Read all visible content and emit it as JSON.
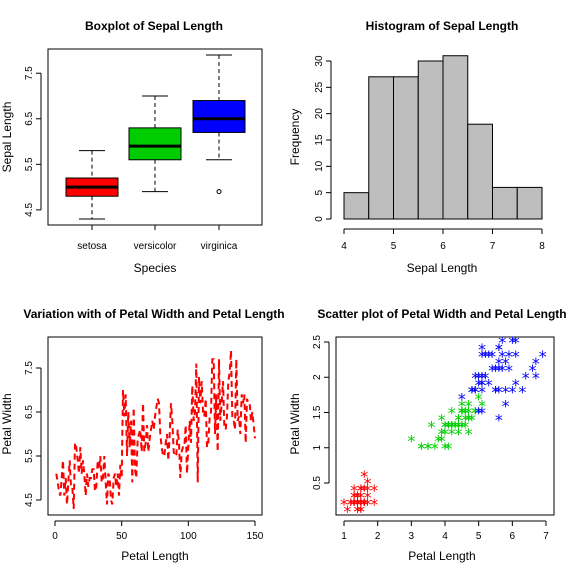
{
  "chart_data": [
    {
      "type": "boxplot",
      "title": "Boxplot of Sepal Length",
      "xlabel": "Species",
      "ylabel": "Sepal Length",
      "categories": [
        "setosa",
        "versicolor",
        "virginica"
      ],
      "yticks": [
        4.5,
        5.5,
        6.5,
        7.5
      ],
      "ylim": [
        4.3,
        7.9
      ],
      "colors": [
        "#ff0000",
        "#00cd00",
        "#0000ff"
      ],
      "boxes": [
        {
          "name": "setosa",
          "min": 4.3,
          "q1": 4.8,
          "median": 5.0,
          "q3": 5.2,
          "max": 5.8,
          "outliers": []
        },
        {
          "name": "versicolor",
          "min": 4.9,
          "q1": 5.6,
          "median": 5.9,
          "q3": 6.3,
          "max": 7.0,
          "outliers": []
        },
        {
          "name": "virginica",
          "min": 5.6,
          "q1": 6.2,
          "median": 6.5,
          "q3": 6.9,
          "max": 7.9,
          "outliers": [
            4.9
          ]
        }
      ]
    },
    {
      "type": "histogram",
      "title": "Histogram of Sepal Length",
      "xlabel": "Sepal Length",
      "ylabel": "Frequency",
      "xticks": [
        4,
        5,
        6,
        7,
        8
      ],
      "yticks": [
        0,
        5,
        10,
        15,
        20,
        25,
        30
      ],
      "fill": "#bebebe",
      "bins": [
        {
          "from": 4.0,
          "to": 4.5,
          "count": 5
        },
        {
          "from": 4.5,
          "to": 5.0,
          "count": 27
        },
        {
          "from": 5.0,
          "to": 5.5,
          "count": 27
        },
        {
          "from": 5.5,
          "to": 6.0,
          "count": 30
        },
        {
          "from": 6.0,
          "to": 6.5,
          "count": 31
        },
        {
          "from": 6.5,
          "to": 7.0,
          "count": 18
        },
        {
          "from": 7.0,
          "to": 7.5,
          "count": 6
        },
        {
          "from": 7.5,
          "to": 8.0,
          "count": 6
        }
      ]
    },
    {
      "type": "line",
      "title": "Variation with of Petal Width and Petal Length",
      "xlabel": "Petal Length",
      "ylabel": "Petal Width",
      "xticks": [
        0,
        50,
        100,
        150
      ],
      "yticks": [
        4.5,
        5.5,
        6.5,
        7.5
      ],
      "line_style": "dashed",
      "color": "#ff0000",
      "y": [
        5.1,
        4.9,
        4.7,
        4.6,
        5.0,
        5.4,
        4.6,
        5.0,
        4.4,
        4.9,
        5.4,
        4.8,
        4.8,
        4.3,
        5.8,
        5.7,
        5.4,
        5.1,
        5.7,
        5.1,
        5.4,
        5.1,
        4.6,
        5.1,
        4.8,
        5.0,
        5.0,
        5.2,
        5.2,
        4.7,
        4.8,
        5.4,
        5.2,
        5.5,
        4.9,
        5.0,
        5.5,
        4.9,
        4.4,
        5.1,
        5.0,
        4.5,
        4.4,
        5.0,
        5.1,
        4.8,
        5.1,
        4.6,
        5.3,
        5.0,
        7.0,
        6.4,
        6.9,
        5.5,
        6.5,
        5.7,
        6.3,
        4.9,
        6.6,
        5.2,
        5.0,
        5.9,
        6.0,
        6.1,
        5.6,
        6.7,
        5.6,
        5.8,
        6.2,
        5.6,
        5.9,
        6.1,
        6.3,
        6.1,
        6.4,
        6.6,
        6.8,
        6.7,
        6.0,
        5.7,
        5.5,
        5.5,
        5.8,
        6.0,
        5.4,
        6.0,
        6.7,
        6.3,
        5.6,
        5.5,
        5.5,
        6.1,
        5.8,
        5.0,
        5.6,
        5.7,
        5.7,
        6.2,
        5.1,
        5.7,
        6.3,
        5.8,
        7.1,
        6.3,
        6.5,
        7.6,
        4.9,
        7.3,
        6.7,
        7.2,
        6.5,
        6.4,
        6.8,
        5.7,
        5.8,
        6.4,
        6.5,
        7.7,
        7.7,
        6.0,
        6.9,
        5.6,
        7.7,
        6.3,
        6.7,
        7.2,
        6.2,
        6.1,
        6.4,
        7.2,
        7.4,
        7.9,
        6.4,
        6.3,
        6.1,
        7.7,
        6.3,
        6.4,
        6.0,
        6.9,
        6.7,
        6.9,
        5.8,
        6.8,
        6.7,
        6.7,
        6.3,
        6.5,
        6.2,
        5.9
      ]
    },
    {
      "type": "scatter",
      "title": "Scatter plot of Petal Width and Petal Length",
      "xlabel": "Petal Length",
      "ylabel": "Petal Width",
      "xticks": [
        1,
        2,
        3,
        4,
        5,
        6,
        7
      ],
      "yticks": [
        0.5,
        1.0,
        1.5,
        2.0,
        2.5
      ],
      "marker": "*",
      "series": [
        {
          "color": "#ff0000",
          "x": [
            1.4,
            1.4,
            1.3,
            1.5,
            1.4,
            1.7,
            1.4,
            1.5,
            1.4,
            1.5,
            1.5,
            1.6,
            1.4,
            1.1,
            1.2,
            1.5,
            1.3,
            1.4,
            1.7,
            1.5,
            1.7,
            1.5,
            1.0,
            1.7,
            1.9,
            1.6,
            1.6,
            1.5,
            1.4,
            1.6,
            1.6,
            1.5,
            1.5,
            1.4,
            1.5,
            1.2,
            1.3,
            1.4,
            1.3,
            1.5,
            1.3,
            1.3,
            1.3,
            1.6,
            1.9,
            1.4,
            1.6,
            1.4,
            1.5,
            1.4
          ],
          "y": [
            0.2,
            0.2,
            0.2,
            0.2,
            0.2,
            0.4,
            0.3,
            0.2,
            0.2,
            0.1,
            0.2,
            0.2,
            0.1,
            0.1,
            0.2,
            0.4,
            0.4,
            0.3,
            0.3,
            0.3,
            0.2,
            0.4,
            0.2,
            0.5,
            0.2,
            0.2,
            0.4,
            0.2,
            0.2,
            0.2,
            0.2,
            0.4,
            0.1,
            0.2,
            0.2,
            0.2,
            0.2,
            0.1,
            0.2,
            0.2,
            0.3,
            0.3,
            0.2,
            0.6,
            0.4,
            0.3,
            0.2,
            0.2,
            0.2,
            0.2
          ]
        },
        {
          "color": "#00cd00",
          "x": [
            4.7,
            4.5,
            4.9,
            4.0,
            4.6,
            4.5,
            4.7,
            3.3,
            4.6,
            3.9,
            3.5,
            4.2,
            4.0,
            4.7,
            3.6,
            4.4,
            4.5,
            4.1,
            4.5,
            3.9,
            4.8,
            4.0,
            4.9,
            4.7,
            4.3,
            4.4,
            4.8,
            5.0,
            4.5,
            3.5,
            3.8,
            3.7,
            3.9,
            5.1,
            4.5,
            4.5,
            4.7,
            4.4,
            4.1,
            4.0,
            4.4,
            4.6,
            4.0,
            3.3,
            4.2,
            4.2,
            4.2,
            4.3,
            3.0,
            4.1
          ],
          "y": [
            1.4,
            1.5,
            1.5,
            1.3,
            1.5,
            1.3,
            1.6,
            1.0,
            1.3,
            1.4,
            1.0,
            1.5,
            1.0,
            1.4,
            1.3,
            1.4,
            1.5,
            1.0,
            1.5,
            1.1,
            1.8,
            1.3,
            1.5,
            1.2,
            1.3,
            1.4,
            1.4,
            1.7,
            1.5,
            1.0,
            1.1,
            1.0,
            1.2,
            1.6,
            1.5,
            1.6,
            1.5,
            1.3,
            1.3,
            1.3,
            1.2,
            1.4,
            1.2,
            1.0,
            1.3,
            1.2,
            1.3,
            1.3,
            1.1,
            1.3
          ]
        },
        {
          "color": "#0000ff",
          "x": [
            6.0,
            5.1,
            5.9,
            5.6,
            5.8,
            6.6,
            4.5,
            6.3,
            5.8,
            6.1,
            5.1,
            5.3,
            5.5,
            5.0,
            5.1,
            5.3,
            5.5,
            6.7,
            6.9,
            5.0,
            5.7,
            4.9,
            6.7,
            4.9,
            5.7,
            6.0,
            4.8,
            4.9,
            5.6,
            5.8,
            6.1,
            6.4,
            5.6,
            5.1,
            5.6,
            6.1,
            5.6,
            5.5,
            4.8,
            5.4,
            5.6,
            5.1,
            5.1,
            5.9,
            5.7,
            5.2,
            5.0,
            5.2,
            5.4,
            5.1
          ],
          "y": [
            2.5,
            1.9,
            2.1,
            1.8,
            2.2,
            2.1,
            1.7,
            1.8,
            1.8,
            2.5,
            2.0,
            1.9,
            2.1,
            2.0,
            2.4,
            2.3,
            1.8,
            2.2,
            2.3,
            1.5,
            2.3,
            2.0,
            2.0,
            1.8,
            2.1,
            1.8,
            1.8,
            1.8,
            2.1,
            1.6,
            1.9,
            2.0,
            2.2,
            1.5,
            1.4,
            2.3,
            2.4,
            1.8,
            1.8,
            2.1,
            2.4,
            2.3,
            1.9,
            2.3,
            2.5,
            2.3,
            1.9,
            2.0,
            2.3,
            1.8
          ]
        }
      ]
    }
  ]
}
